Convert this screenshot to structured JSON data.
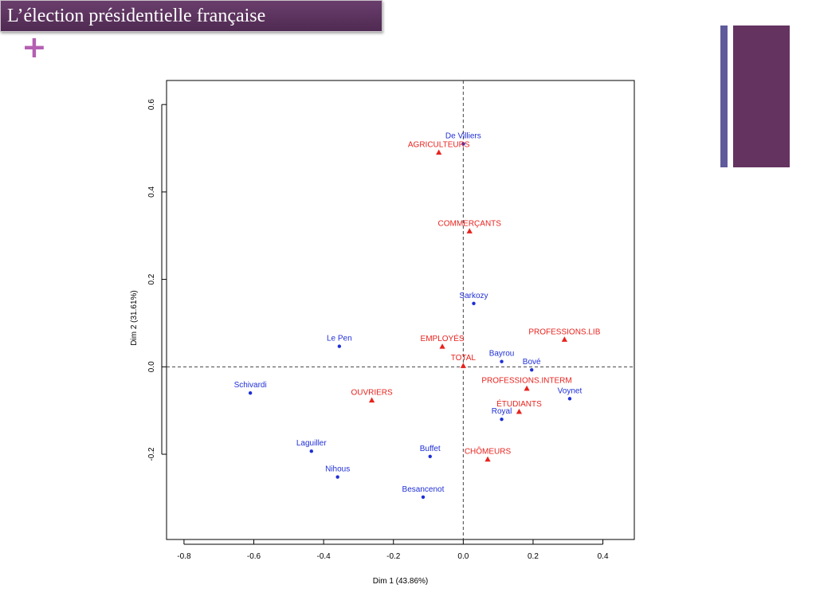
{
  "slide": {
    "title": "L’élection présidentielle française",
    "plus_glyph": "+",
    "colors": {
      "title_bg": "#5a3259",
      "plus": "#b45fb2",
      "deco_thin": "#5f5a9b",
      "deco_wide": "#643360"
    }
  },
  "chart_data": {
    "type": "scatter",
    "title": "",
    "xlabel": "Dim 1 (43.86%)",
    "ylabel": "Dim 2 (31.61%)",
    "xlim": [
      -0.85,
      0.49
    ],
    "ylim": [
      -0.395,
      0.655
    ],
    "x_ticks": [
      -0.8,
      -0.6,
      -0.4,
      -0.2,
      0.0,
      0.2,
      0.4
    ],
    "x_tick_labels": [
      "-0.8",
      "-0.6",
      "-0.4",
      "-0.2",
      "0.0",
      "0.2",
      "0.4"
    ],
    "y_ticks": [
      -0.2,
      0.0,
      0.2,
      0.4,
      0.6
    ],
    "y_tick_labels": [
      "-0.2",
      "0.0",
      "0.2",
      "0.4",
      "0.6"
    ],
    "reference_lines": {
      "x": 0,
      "y": 0,
      "style": "dashed"
    },
    "grid": false,
    "series": [
      {
        "marker": "circle",
        "color": "#1f2fd6",
        "points": [
          {
            "label": "De Villiers",
            "x": 0.0,
            "y": 0.51
          },
          {
            "label": "Sarkozy",
            "x": 0.03,
            "y": 0.145
          },
          {
            "label": "Le Pen",
            "x": -0.355,
            "y": 0.047
          },
          {
            "label": "Bayrou",
            "x": 0.11,
            "y": 0.012
          },
          {
            "label": "Bové",
            "x": 0.196,
            "y": -0.007
          },
          {
            "label": "Schivardi",
            "x": -0.61,
            "y": -0.06
          },
          {
            "label": "Voynet",
            "x": 0.305,
            "y": -0.073
          },
          {
            "label": "Royal",
            "x": 0.11,
            "y": -0.12
          },
          {
            "label": "Laguiller",
            "x": -0.435,
            "y": -0.193
          },
          {
            "label": "Buffet",
            "x": -0.095,
            "y": -0.205
          },
          {
            "label": "Nihous",
            "x": -0.36,
            "y": -0.252
          },
          {
            "label": "Besancenot",
            "x": -0.115,
            "y": -0.298
          }
        ]
      },
      {
        "marker": "triangle",
        "color": "#e8231e",
        "points": [
          {
            "label": "AGRICULTEURS",
            "x": -0.07,
            "y": 0.49
          },
          {
            "label": "COMMERÇANTS",
            "x": 0.018,
            "y": 0.31
          },
          {
            "label": "PROFESSIONS.LIB",
            "x": 0.29,
            "y": 0.062
          },
          {
            "label": "EMPLOYÉS",
            "x": -0.06,
            "y": 0.046
          },
          {
            "label": "TOTAL",
            "x": 0.0,
            "y": 0.002
          },
          {
            "label": "PROFESSIONS.INTERM",
            "x": 0.182,
            "y": -0.05
          },
          {
            "label": "OUVRIERS",
            "x": -0.262,
            "y": -0.077
          },
          {
            "label": "ÉTUDIANTS",
            "x": 0.16,
            "y": -0.103
          },
          {
            "label": "CHÔMEURS",
            "x": 0.07,
            "y": -0.212
          }
        ]
      }
    ]
  }
}
